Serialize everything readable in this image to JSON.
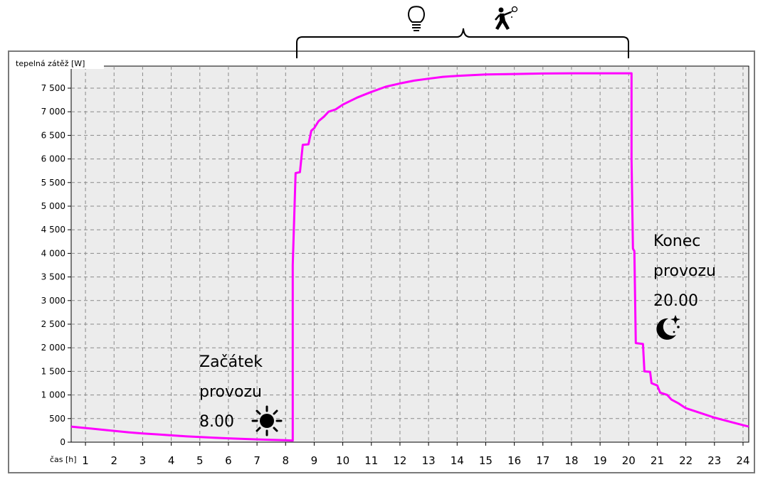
{
  "chart_data": {
    "type": "line",
    "ylabel": "tepelná zátěž [W]",
    "xlabel": "čas [h]",
    "xlim": [
      0.5,
      24.2
    ],
    "ylim": [
      0,
      7800
    ],
    "x_ticks": [
      "1",
      "2",
      "3",
      "4",
      "5",
      "6",
      "7",
      "8",
      "9",
      "10",
      "11",
      "12",
      "13",
      "14",
      "15",
      "16",
      "17",
      "18",
      "19",
      "20",
      "21",
      "22",
      "23",
      "24"
    ],
    "y_ticks": [
      "0",
      "500",
      "1 000",
      "1 500",
      "2 000",
      "2 500",
      "3 000",
      "3 500",
      "4 000",
      "4 500",
      "5 000",
      "5 500",
      "6 000",
      "6 500",
      "7 000",
      "7 500"
    ],
    "y_tick_values": [
      0,
      500,
      1000,
      1500,
      2000,
      2500,
      3000,
      3500,
      4000,
      4500,
      5000,
      5500,
      6000,
      6500,
      7000,
      7500
    ],
    "grid": true,
    "line_color": "#ff00ff",
    "series": [
      {
        "points": [
          [
            0.5,
            330
          ],
          [
            1.0,
            300
          ],
          [
            1.5,
            270
          ],
          [
            2.0,
            240
          ],
          [
            2.5,
            210
          ],
          [
            3.0,
            185
          ],
          [
            3.5,
            165
          ],
          [
            4.0,
            145
          ],
          [
            4.5,
            125
          ],
          [
            5.0,
            110
          ],
          [
            5.5,
            95
          ],
          [
            6.0,
            82
          ],
          [
            6.5,
            70
          ],
          [
            7.0,
            58
          ],
          [
            7.5,
            48
          ],
          [
            8.0,
            40
          ],
          [
            8.25,
            35
          ],
          [
            8.25,
            3750
          ],
          [
            8.35,
            5700
          ],
          [
            8.5,
            5720
          ],
          [
            8.6,
            6300
          ],
          [
            8.8,
            6310
          ],
          [
            8.9,
            6600
          ],
          [
            9.0,
            6650
          ],
          [
            9.15,
            6800
          ],
          [
            9.35,
            6900
          ],
          [
            9.5,
            7000
          ],
          [
            9.75,
            7050
          ],
          [
            10.0,
            7150
          ],
          [
            10.5,
            7300
          ],
          [
            11.0,
            7420
          ],
          [
            11.5,
            7530
          ],
          [
            12.0,
            7600
          ],
          [
            12.5,
            7660
          ],
          [
            13.0,
            7700
          ],
          [
            13.5,
            7740
          ],
          [
            14.0,
            7760
          ],
          [
            15.0,
            7790
          ],
          [
            16.0,
            7800
          ],
          [
            17.0,
            7810
          ],
          [
            18.0,
            7815
          ],
          [
            19.0,
            7815
          ],
          [
            20.1,
            7815
          ],
          [
            20.1,
            6000
          ],
          [
            20.15,
            4100
          ],
          [
            20.2,
            4050
          ],
          [
            20.25,
            2100
          ],
          [
            20.5,
            2080
          ],
          [
            20.55,
            1500
          ],
          [
            20.75,
            1490
          ],
          [
            20.8,
            1250
          ],
          [
            21.0,
            1200
          ],
          [
            21.1,
            1050
          ],
          [
            21.35,
            1000
          ],
          [
            21.5,
            900
          ],
          [
            21.75,
            820
          ],
          [
            22.0,
            720
          ],
          [
            22.5,
            620
          ],
          [
            23.0,
            520
          ],
          [
            23.5,
            440
          ],
          [
            24.0,
            360
          ],
          [
            24.2,
            330
          ]
        ]
      }
    ],
    "annotations": [
      {
        "lines": [
          "Začátek",
          "provozu",
          "8.00"
        ],
        "icon": "sun-icon"
      },
      {
        "lines": [
          "Konec",
          "provozu",
          "20.00"
        ],
        "icon": "moon-stars-icon"
      },
      {
        "icon": "lightbulb-icon"
      },
      {
        "icon": "tennis-player-icon"
      }
    ]
  }
}
